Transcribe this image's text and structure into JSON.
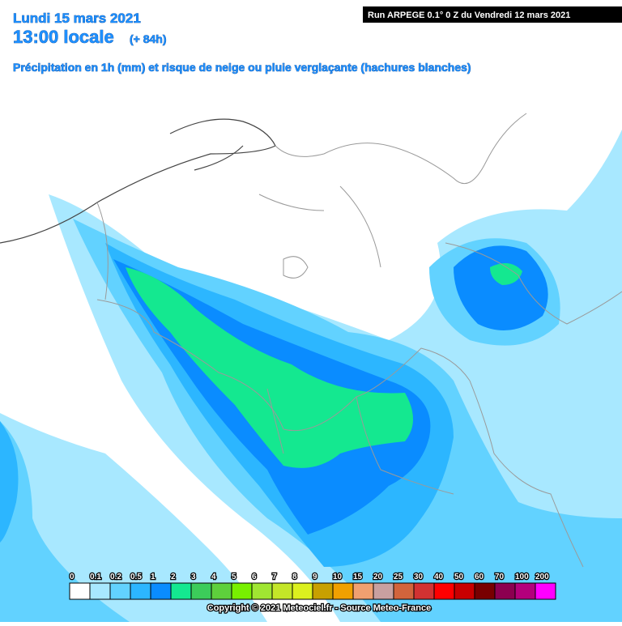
{
  "header": {
    "date": "Lundi 15 mars 2021",
    "time": "13:00 locale",
    "offset": "(+ 84h)",
    "subtitle": "Précipitation en 1h (mm) et risque de neige ou pluie verglaçante (hachures blanches)",
    "run": "Run ARPEGE 0.1° 0 Z du Vendredi 12 mars 2021"
  },
  "legend": [
    {
      "label": "0",
      "color": "#ffffff"
    },
    {
      "label": "0.1",
      "color": "#a8e8ff"
    },
    {
      "label": "0.2",
      "color": "#62d2ff"
    },
    {
      "label": "0.5",
      "color": "#2cb6ff"
    },
    {
      "label": "1",
      "color": "#0a8cff"
    },
    {
      "label": "2",
      "color": "#14e890"
    },
    {
      "label": "3",
      "color": "#3ccc5a"
    },
    {
      "label": "4",
      "color": "#5ed03c"
    },
    {
      "label": "5",
      "color": "#78f000"
    },
    {
      "label": "6",
      "color": "#a0e632"
    },
    {
      "label": "7",
      "color": "#c4e628"
    },
    {
      "label": "8",
      "color": "#dcf01e"
    },
    {
      "label": "9",
      "color": "#c8a000"
    },
    {
      "label": "10",
      "color": "#f0a000"
    },
    {
      "label": "15",
      "color": "#f0a070"
    },
    {
      "label": "20",
      "color": "#c8a0a0"
    },
    {
      "label": "25",
      "color": "#d2643c"
    },
    {
      "label": "30",
      "color": "#d23232"
    },
    {
      "label": "40",
      "color": "#ff0000"
    },
    {
      "label": "50",
      "color": "#c80000"
    },
    {
      "label": "60",
      "color": "#780000"
    },
    {
      "label": "70",
      "color": "#8c0050"
    },
    {
      "label": "100",
      "color": "#b4007c"
    },
    {
      "label": "200",
      "color": "#ff00ff"
    }
  ],
  "footer": {
    "copyright": "Copyright © 2021 Meteociel.fr - Source Meteo-France"
  }
}
